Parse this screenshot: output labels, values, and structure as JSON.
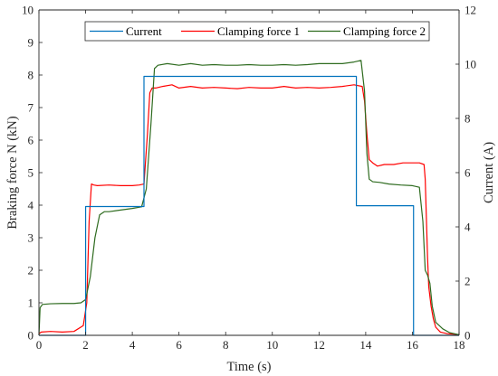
{
  "chart_data": {
    "type": "line",
    "xlabel": "Time (s)",
    "ylabel_left": "Braking force N (kN)",
    "ylabel_right": "Current (A)",
    "xlim": [
      0,
      18
    ],
    "ylim_left": [
      0,
      10
    ],
    "ylim_right": [
      0,
      12
    ],
    "x_ticks": [
      0,
      2,
      4,
      6,
      8,
      10,
      12,
      14,
      16,
      18
    ],
    "y_left_ticks": [
      0,
      1,
      2,
      3,
      4,
      5,
      6,
      7,
      8,
      9,
      10
    ],
    "y_right_ticks": [
      0,
      2,
      4,
      6,
      8,
      10,
      12
    ],
    "grid": false,
    "legend_position": "top-right",
    "series": [
      {
        "name": "Current",
        "axis": "right",
        "color": "#0072BD",
        "x": [
          0,
          2.0,
          2.0,
          4.5,
          4.5,
          13.6,
          13.6,
          16.05,
          16.05,
          18
        ],
        "y": [
          0,
          0,
          4.75,
          4.75,
          9.55,
          9.55,
          4.78,
          4.78,
          0,
          0
        ]
      },
      {
        "name": "Clamping force 1",
        "axis": "left",
        "color": "#FF0000",
        "x": [
          0,
          0.1,
          0.5,
          1.0,
          1.5,
          1.9,
          2.05,
          2.15,
          2.25,
          2.35,
          2.5,
          3.0,
          3.5,
          4.0,
          4.3,
          4.5,
          4.65,
          4.75,
          4.85,
          5.0,
          5.3,
          5.7,
          6.0,
          6.5,
          7.0,
          7.5,
          8.0,
          8.5,
          9.0,
          9.5,
          10.0,
          10.5,
          11.0,
          11.5,
          12.0,
          12.5,
          13.0,
          13.5,
          13.85,
          13.95,
          14.05,
          14.15,
          14.3,
          14.5,
          14.8,
          15.2,
          15.6,
          16.0,
          16.3,
          16.5,
          16.55,
          16.6,
          16.65,
          16.7,
          16.8,
          16.9,
          17.0,
          17.2,
          17.5,
          18.0
        ],
        "y": [
          0.05,
          0.1,
          0.12,
          0.1,
          0.12,
          0.3,
          1.0,
          3.5,
          4.65,
          4.62,
          4.6,
          4.62,
          4.6,
          4.6,
          4.62,
          4.65,
          6.2,
          7.45,
          7.6,
          7.6,
          7.65,
          7.7,
          7.6,
          7.65,
          7.6,
          7.62,
          7.6,
          7.58,
          7.62,
          7.6,
          7.6,
          7.65,
          7.6,
          7.62,
          7.6,
          7.62,
          7.65,
          7.7,
          7.65,
          7.2,
          6.2,
          5.4,
          5.3,
          5.2,
          5.25,
          5.25,
          5.3,
          5.3,
          5.3,
          5.25,
          4.8,
          3.6,
          2.4,
          1.5,
          0.9,
          0.5,
          0.25,
          0.1,
          0.05,
          0.02
        ]
      },
      {
        "name": "Clamping force 2",
        "axis": "left",
        "color": "#2E6B1F",
        "x": [
          0,
          0.03,
          0.05,
          0.15,
          0.5,
          1.0,
          1.5,
          1.8,
          2.0,
          2.2,
          2.4,
          2.6,
          2.8,
          3.0,
          3.5,
          4.0,
          4.4,
          4.6,
          4.8,
          4.95,
          5.1,
          5.5,
          6.0,
          6.5,
          7.0,
          7.5,
          8.0,
          8.5,
          9.0,
          9.5,
          10.0,
          10.5,
          11.0,
          11.5,
          12.0,
          12.5,
          13.0,
          13.5,
          13.8,
          13.95,
          14.05,
          14.15,
          14.3,
          14.6,
          15.0,
          15.5,
          16.0,
          16.3,
          16.45,
          16.55,
          16.65,
          16.75,
          16.85,
          17.0,
          17.3,
          17.6,
          18.0
        ],
        "y": [
          0.0,
          0.5,
          0.85,
          0.95,
          0.97,
          0.98,
          0.98,
          1.0,
          1.1,
          1.8,
          3.0,
          3.7,
          3.8,
          3.8,
          3.85,
          3.9,
          3.95,
          4.5,
          6.5,
          8.2,
          8.3,
          8.35,
          8.3,
          8.35,
          8.3,
          8.32,
          8.3,
          8.3,
          8.32,
          8.3,
          8.3,
          8.32,
          8.3,
          8.32,
          8.35,
          8.35,
          8.35,
          8.4,
          8.45,
          7.5,
          5.6,
          4.8,
          4.72,
          4.7,
          4.65,
          4.62,
          4.6,
          4.55,
          3.5,
          2.0,
          1.85,
          1.6,
          0.9,
          0.4,
          0.2,
          0.08,
          0.02
        ]
      }
    ]
  }
}
